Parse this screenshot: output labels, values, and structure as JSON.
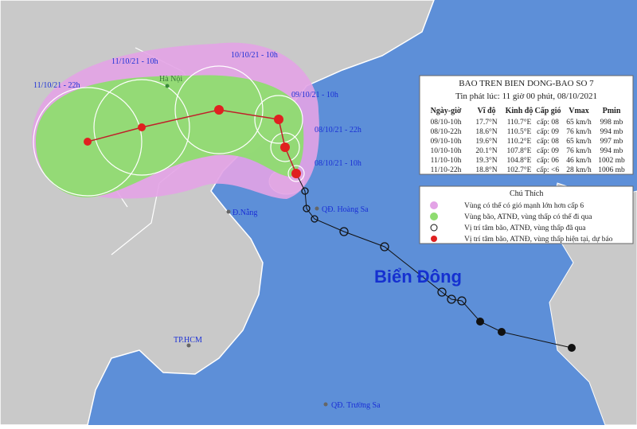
{
  "map_labels": [
    "10/10/21 - 10h",
    "11/10/21 - 10h",
    "11/10/21 - 22h",
    "Hà Nội",
    "09/10/21 - 10h",
    "08/10/21 - 22h",
    "08/10/21 - 10h",
    "Đ.Nẵng",
    "QĐ. Hoàng Sa",
    "Biển Đông",
    "TP.HCM",
    "QĐ. Trường Sa"
  ],
  "info": {
    "title": "BAO TREN BIEN DONG-BAO SO 7",
    "subtitle": "Tin phát lúc: 11 giờ 00 phút, 08/10/2021",
    "header": [
      "Ngày-giờ",
      "Vĩ độ",
      "Kinh độ",
      "Cấp gió",
      "Vmax",
      "Pmin"
    ],
    "rows": [
      [
        "08/10-10h",
        "17.7°N",
        "110.7°E",
        "cấp: 08",
        "65 km/h",
        "998 mb"
      ],
      [
        "08/10-22h",
        "18.6°N",
        "110.5°E",
        "cấp: 09",
        "76 km/h",
        "994 mb"
      ],
      [
        "09/10-10h",
        "19.6°N",
        "110.2°E",
        "cấp: 08",
        "65 km/h",
        "997 mb"
      ],
      [
        "10/10-10h",
        "20.1°N",
        "107.8°E",
        "cấp: 09",
        "76 km/h",
        "994 mb"
      ],
      [
        "11/10-10h",
        "19.3°N",
        "104.8°E",
        "cấp: 06",
        "46 km/h",
        "1002 mb"
      ],
      [
        "11/10-22h",
        "18.8°N",
        "102.7°E",
        "cấp: <6",
        "28 km/h",
        "1006 mb"
      ]
    ]
  },
  "legend": {
    "title": "Chú Thích",
    "items": [
      "Vùng có thể có gió mạnh lớn hơn cấp 6",
      "Vùng bão, ATNĐ, vùng thấp có thể đi qua",
      "Vị trí tâm bão, ATNĐ, vùng thấp đã qua",
      "Vị trí tâm bão, ATNĐ, vùng thấp hiện tại, dự báo"
    ]
  }
}
